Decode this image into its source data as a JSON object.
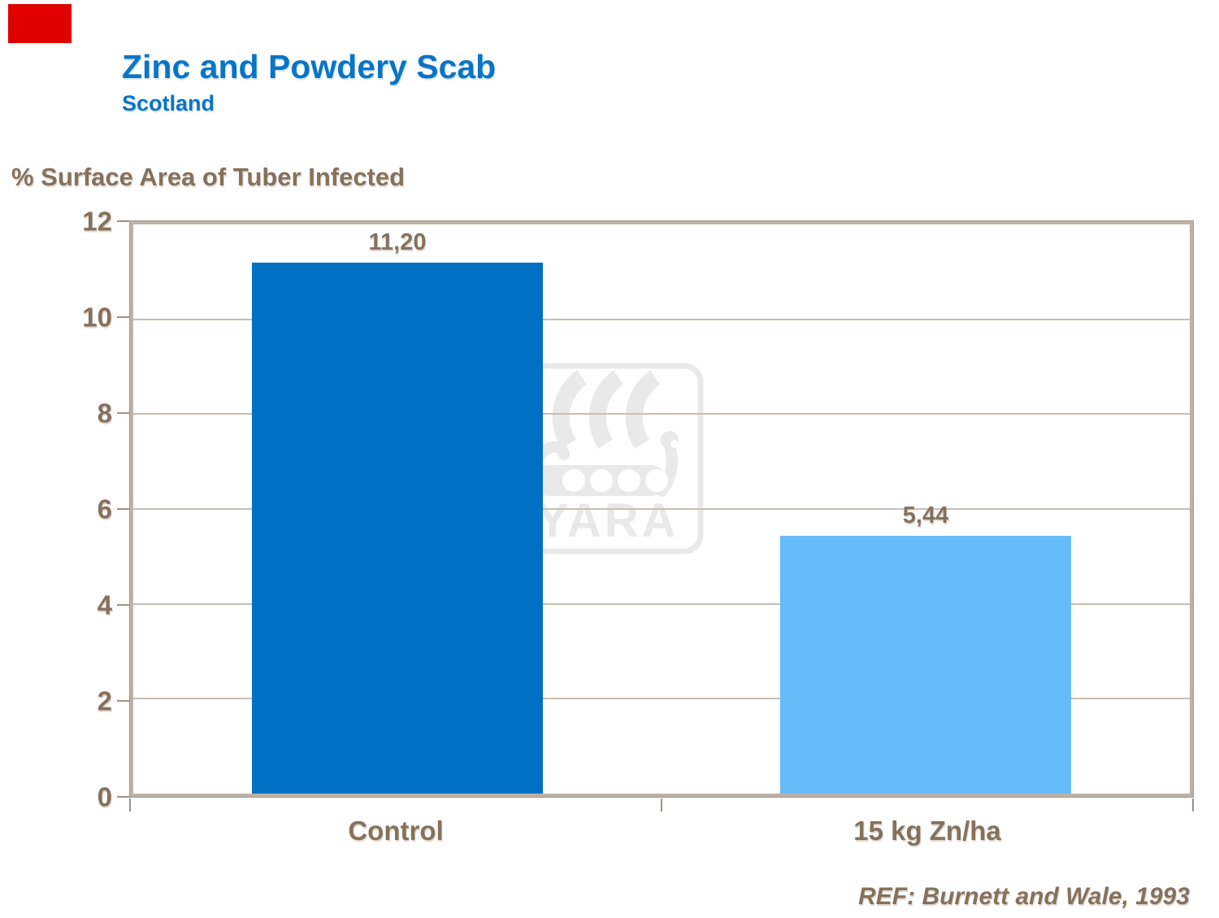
{
  "slide": {
    "title": "Zinc and Powdery Scab",
    "subtitle": "Scotland",
    "reference": "REF: Burnett and Wale, 1993",
    "brand": {
      "corner_tab_color": "#e00000",
      "watermark_text": "YARA"
    }
  },
  "chart_data": {
    "type": "bar",
    "title": "Zinc and Powdery Scab",
    "subtitle": "Scotland",
    "ylabel": "% Surface Area of Tuber Infected",
    "xlabel": "",
    "categories": [
      "Control",
      "15 kg Zn/ha"
    ],
    "values": [
      11.2,
      5.44
    ],
    "data_labels": [
      "11,20",
      "5,44"
    ],
    "series_colors": [
      "#0070c4",
      "#66bbf9"
    ],
    "ylim": [
      0,
      12
    ],
    "yticks": [
      0,
      2,
      4,
      6,
      8,
      10,
      12
    ],
    "grid": true,
    "legend": false,
    "annotation": "REF: Burnett and Wale, 1993",
    "text_color": "#85715c",
    "frame_color": "#bdb2a6"
  }
}
